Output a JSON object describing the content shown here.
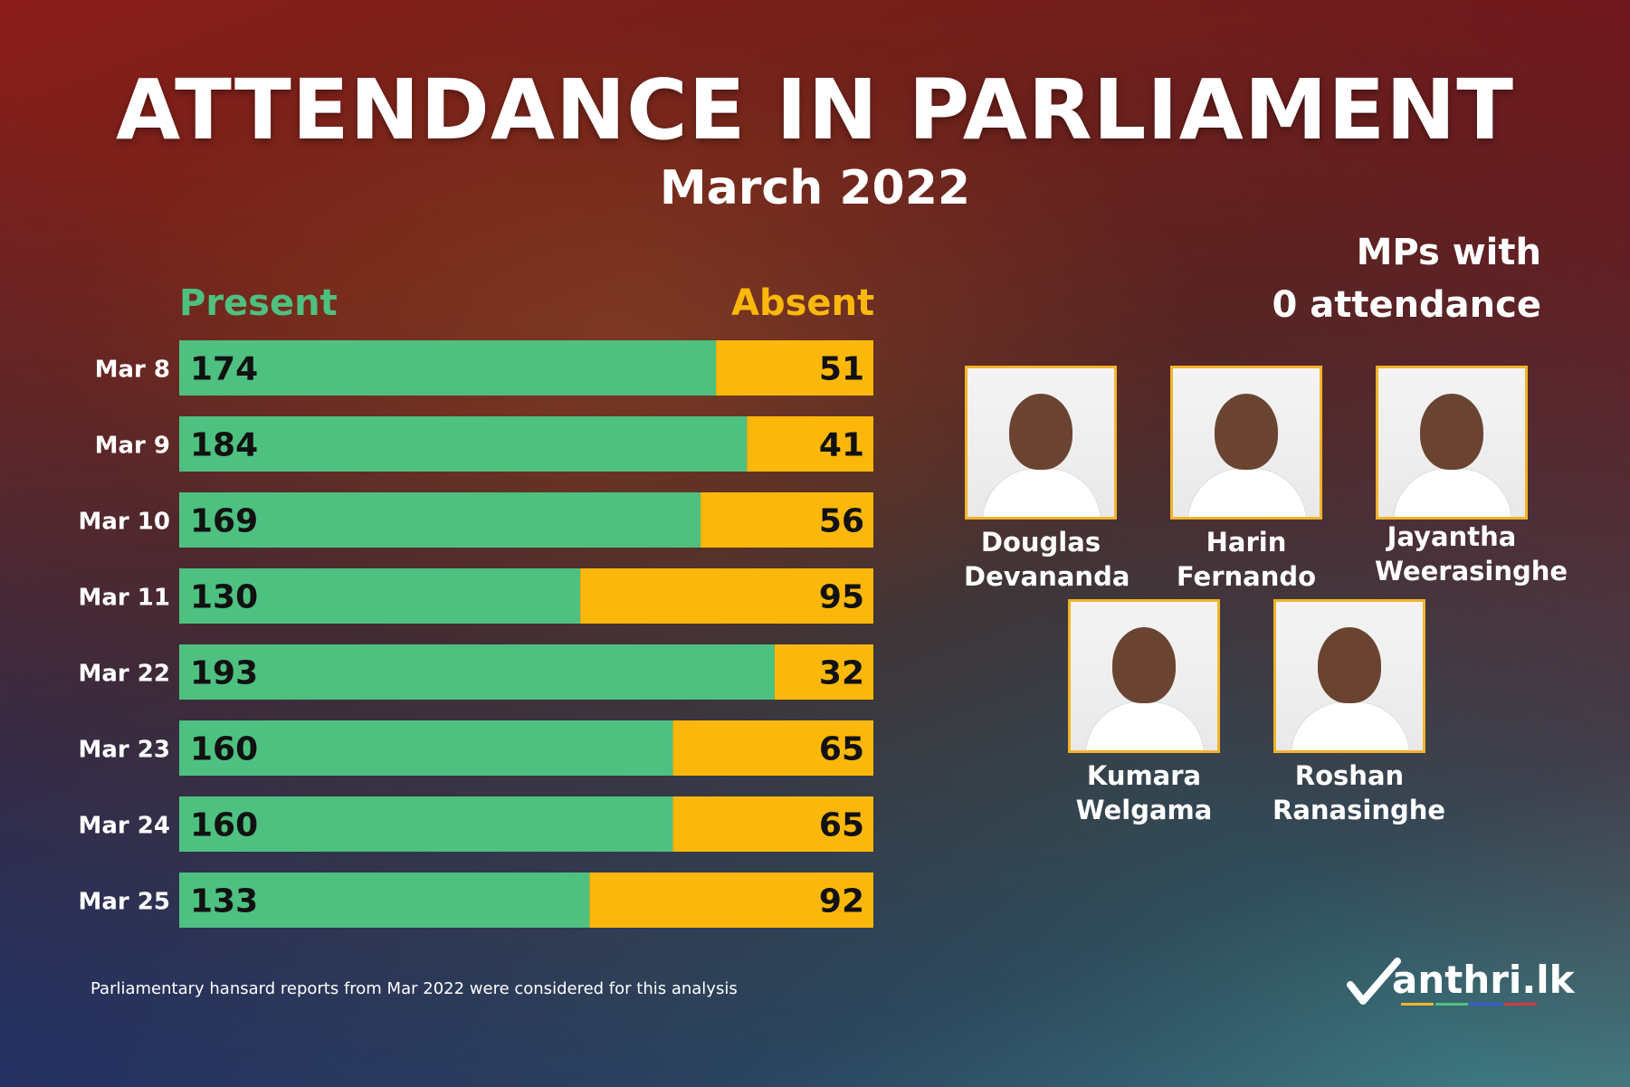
{
  "title": "ATTENDANCE IN PARLIAMENT",
  "subtitle": "March 2022",
  "mps_heading_line1": "MPs with",
  "mps_heading_line2": "0 attendance",
  "mps": [
    {
      "first": "Douglas",
      "last": "Devananda"
    },
    {
      "first": "Harin",
      "last": "Fernando"
    },
    {
      "first": "Jayantha",
      "last": "Weerasinghe"
    },
    {
      "first": "Kumara",
      "last": "Welgama"
    },
    {
      "first": "Roshan",
      "last": "Ranasinghe"
    }
  ],
  "footnote": "Parliamentary hansard reports from Mar 2022 were considered for this analysis",
  "logo_text": "anthri.lk",
  "chart_data": {
    "type": "bar",
    "stacked": true,
    "orientation": "horizontal",
    "categories": [
      "Mar 8",
      "Mar 9",
      "Mar 10",
      "Mar 11",
      "Mar 22",
      "Mar 23",
      "Mar 24",
      "Mar 25"
    ],
    "series": [
      {
        "name": "Present",
        "color": "#4ec080",
        "values": [
          174,
          184,
          169,
          130,
          193,
          160,
          160,
          133
        ]
      },
      {
        "name": "Absent",
        "color": "#fbb80a",
        "values": [
          51,
          41,
          56,
          95,
          32,
          65,
          65,
          92
        ]
      }
    ],
    "xlim": [
      0,
      225
    ]
  }
}
